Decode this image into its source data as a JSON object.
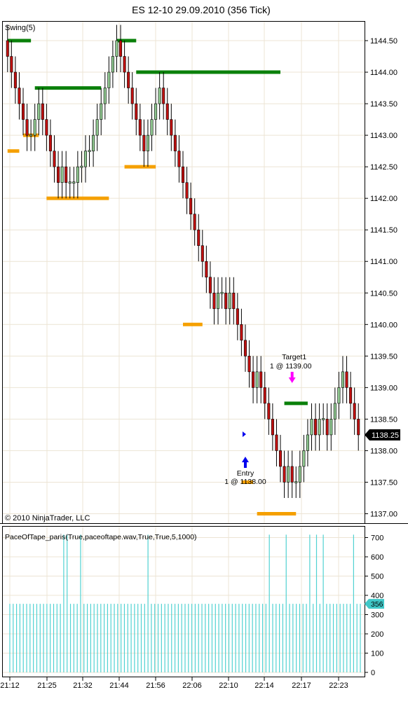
{
  "header": {
    "title": "ES 12-10  29.09.2010 (356 Tick)"
  },
  "colors": {
    "up_bar": "#90c890",
    "down_bar": "#c01010",
    "swing_high": "#0a800a",
    "swing_low": "#f5a000",
    "volume_line": "#50d2d2",
    "grid": "#ece4d4",
    "last_price_bg": "#000000",
    "volume_marker_bg": "#40c8c8",
    "entry_arrow": "#0000ee",
    "target_arrow": "#ff00ff"
  },
  "footer": {
    "copyright": "© 2010 NinjaTrader, LLC"
  },
  "chart_data": [
    {
      "type": "candlestick",
      "indicator_label": "Swing(5)",
      "ylim": [
        1136.85,
        1144.8
      ],
      "y_ticks": [
        "1144.50",
        "1144.00",
        "1143.50",
        "1143.00",
        "1142.50",
        "1142.00",
        "1141.50",
        "1141.00",
        "1140.50",
        "1140.00",
        "1139.50",
        "1139.00",
        "1138.50",
        "1138.00",
        "1137.50",
        "1137.00"
      ],
      "x_tick_labels": [
        "21:12",
        "21:25",
        "21:32",
        "21:44",
        "21:56",
        "22:06",
        "22:10",
        "22:14",
        "22:17",
        "22:23"
      ],
      "last_price": "1138.25",
      "grid": true,
      "closes": [
        1144.25,
        1144.0,
        1143.75,
        1143.5,
        1143.25,
        1143.0,
        1143.0,
        1143.25,
        1143.5,
        1143.25,
        1143.0,
        1142.75,
        1142.5,
        1142.25,
        1142.5,
        1142.25,
        1142.25,
        1142.25,
        1142.5,
        1142.5,
        1142.75,
        1142.75,
        1143.0,
        1143.25,
        1143.5,
        1143.75,
        1144.0,
        1144.25,
        1144.5,
        1144.25,
        1144.0,
        1143.75,
        1143.5,
        1143.25,
        1143.0,
        1142.75,
        1143.0,
        1143.25,
        1143.5,
        1143.75,
        1143.5,
        1143.25,
        1143.0,
        1142.75,
        1142.5,
        1142.25,
        1142.0,
        1141.75,
        1141.5,
        1141.25,
        1141.0,
        1140.75,
        1140.5,
        1140.25,
        1140.5,
        1140.5,
        1140.25,
        1140.5,
        1140.25,
        1140.0,
        1139.75,
        1139.5,
        1139.25,
        1139.0,
        1139.25,
        1139.0,
        1138.75,
        1138.5,
        1138.25,
        1138.0,
        1137.75,
        1137.5,
        1137.75,
        1137.5,
        1137.5,
        1137.75,
        1138.0,
        1138.25,
        1138.5,
        1138.25,
        1138.5,
        1138.5,
        1138.25,
        1138.5,
        1138.75,
        1139.0,
        1139.25,
        1139.0,
        1138.75,
        1138.5,
        1138.25
      ],
      "swing_highs": [
        {
          "from": 0,
          "to": 6,
          "value": 1144.5
        },
        {
          "from": 7,
          "to": 24,
          "value": 1143.75
        },
        {
          "from": 28,
          "to": 33,
          "value": 1144.5
        },
        {
          "from": 33,
          "to": 70,
          "value": 1144.0
        },
        {
          "from": 71,
          "to": 77,
          "value": 1138.75
        }
      ],
      "swing_lows": [
        {
          "from": 0,
          "to": 3,
          "value": 1142.75
        },
        {
          "from": 4,
          "to": 8,
          "value": 1143.0
        },
        {
          "from": 10,
          "to": 26,
          "value": 1142.0
        },
        {
          "from": 30,
          "to": 38,
          "value": 1142.5
        },
        {
          "from": 45,
          "to": 50,
          "value": 1140.0
        },
        {
          "from": 60,
          "to": 63,
          "value": 1137.5
        },
        {
          "from": 64,
          "to": 74,
          "value": 1137.0
        }
      ],
      "annotations": [
        {
          "label_line1": "Entry",
          "label_line2": "1 @ 1138.00",
          "bar": 61,
          "price": 1137.75,
          "kind": "entry"
        },
        {
          "label_line1": "Target1",
          "label_line2": "1 @ 1139.00",
          "bar": 73,
          "price": 1139.25,
          "kind": "target"
        }
      ]
    },
    {
      "type": "bar",
      "indicator_label": "PaceOfTape_paris(True,paceoftape.wav,True,True,5,1000)",
      "ylim": [
        0,
        720
      ],
      "y_ticks": [
        "700",
        "600",
        "500",
        "400",
        "300",
        "200",
        "100",
        "0"
      ],
      "last_value": "356",
      "baseline_value": 356,
      "spike_value": 715,
      "spike_bars": [
        16,
        17,
        21,
        41,
        77,
        82,
        89,
        91,
        93,
        102
      ]
    }
  ]
}
